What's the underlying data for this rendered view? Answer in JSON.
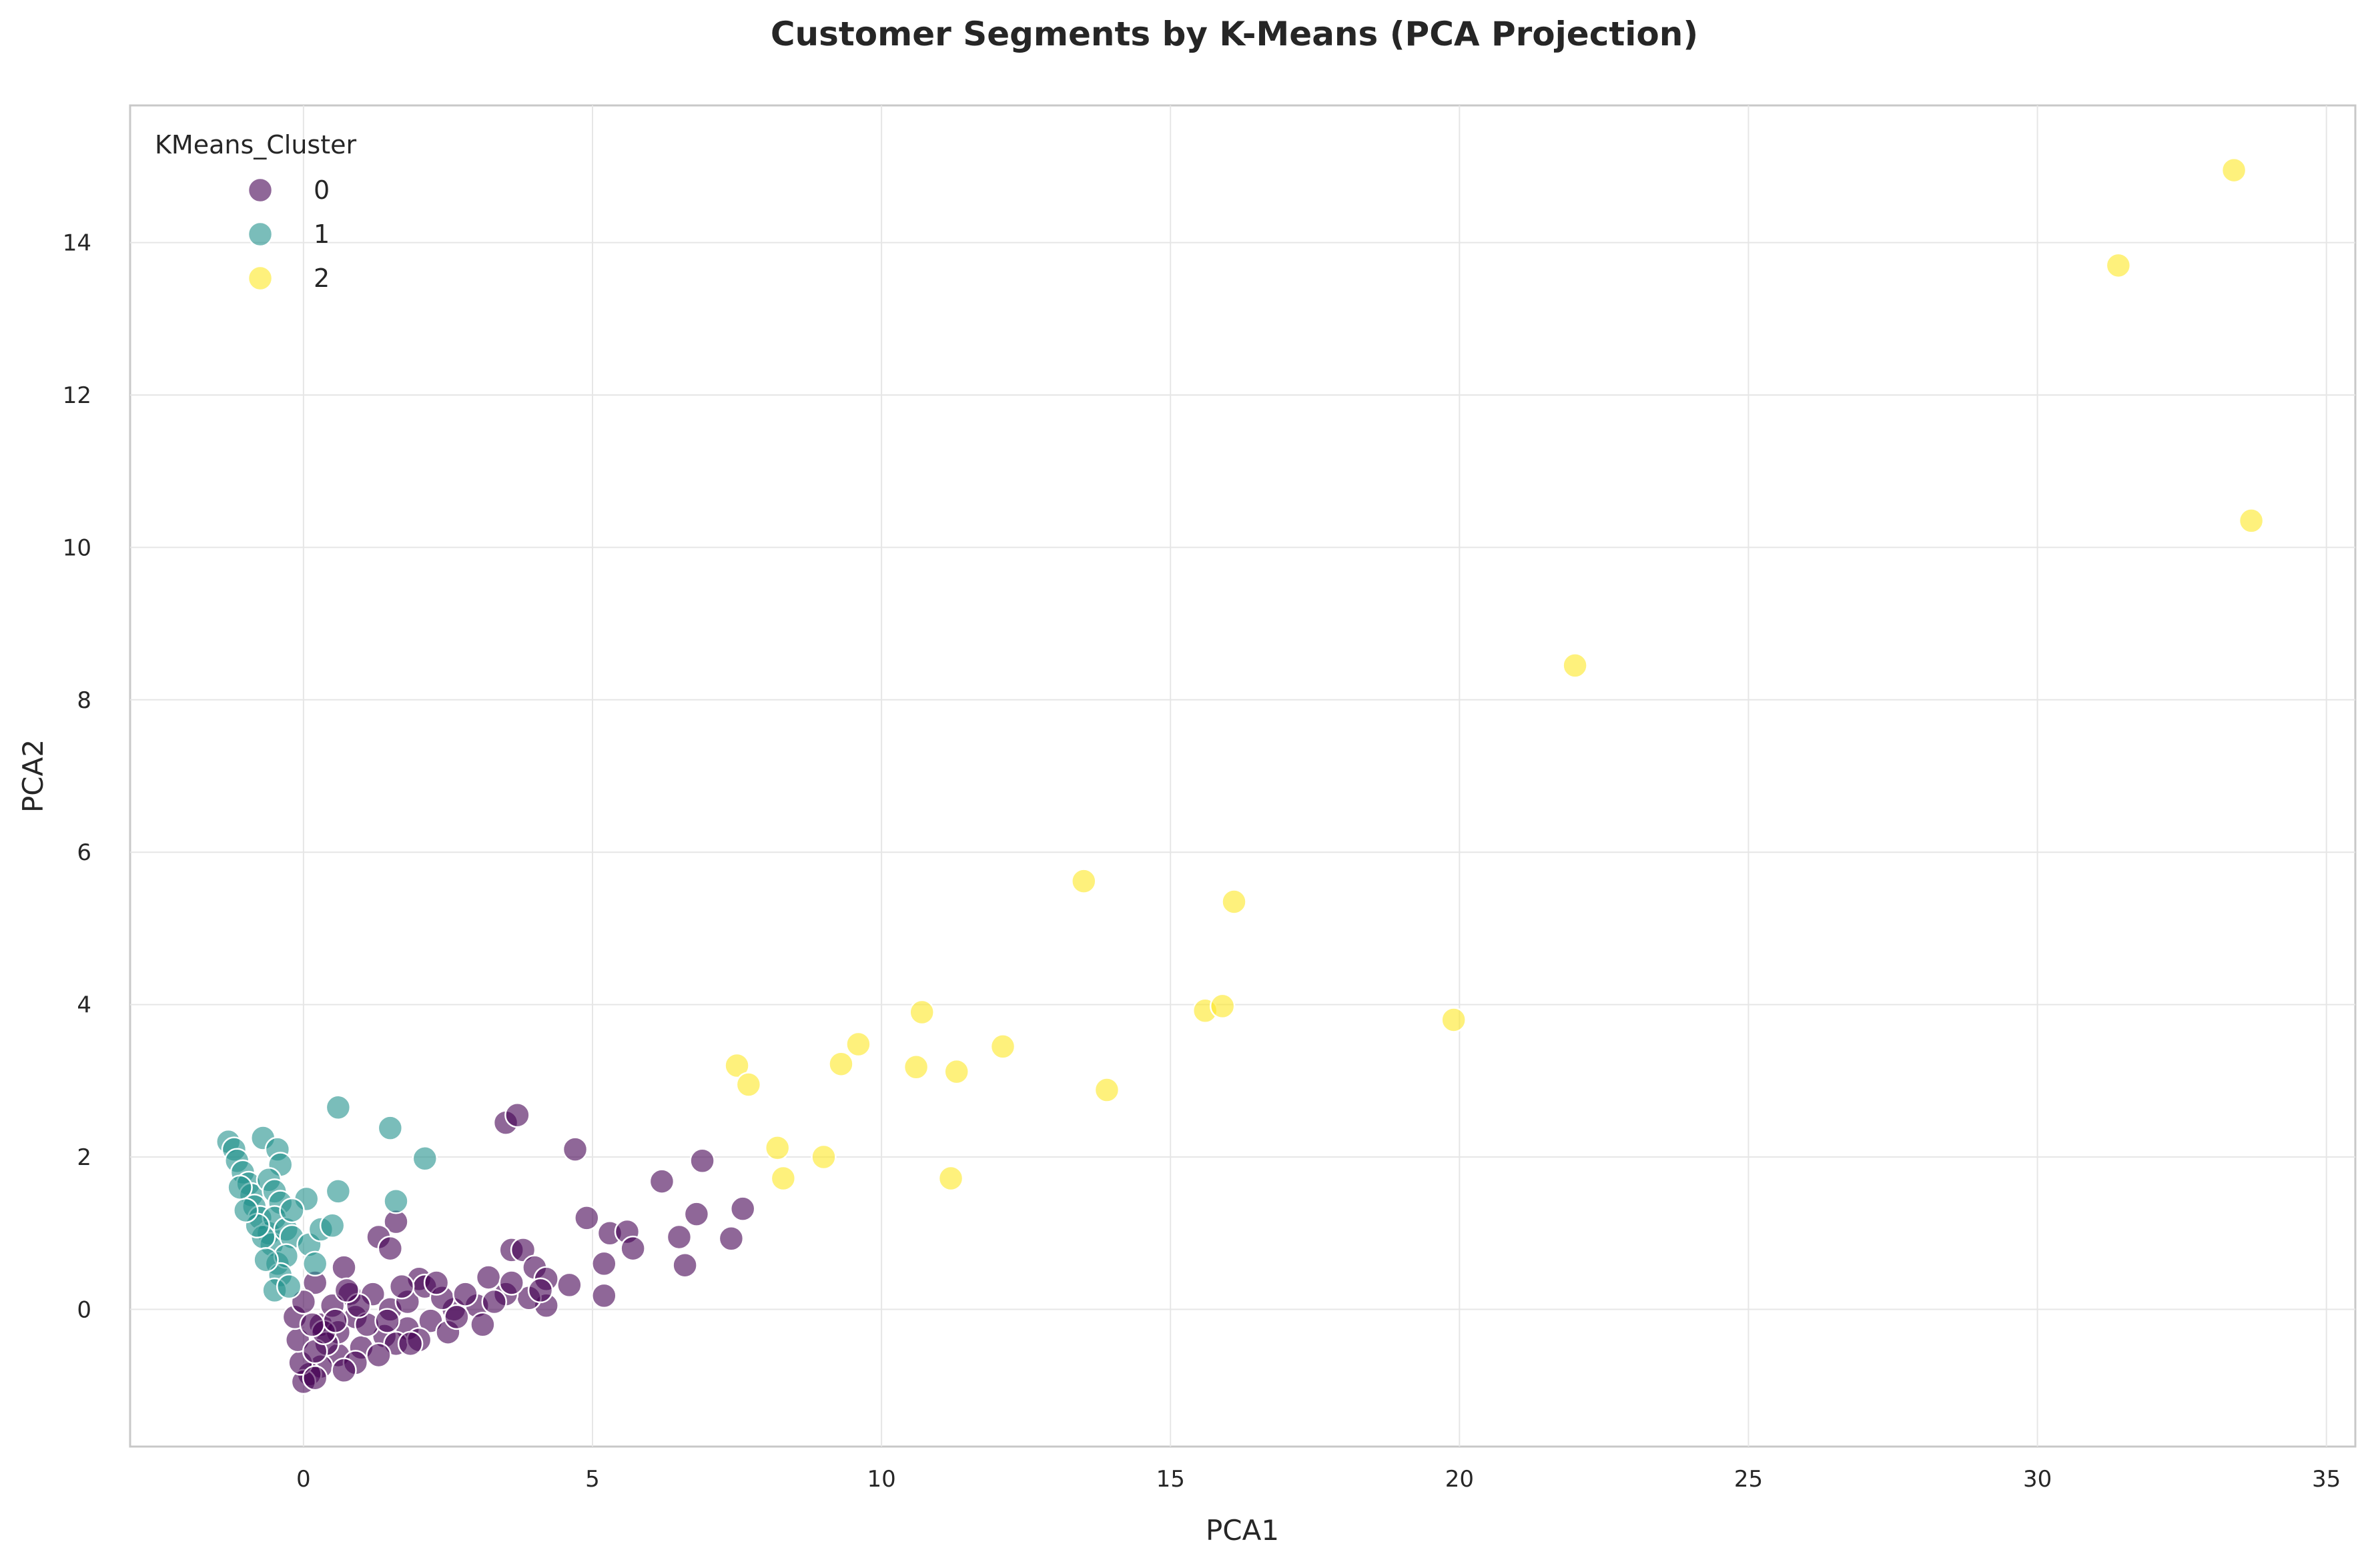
{
  "chart_data": {
    "type": "scatter",
    "title": "Customer Segments by K-Means (PCA Projection)",
    "xlabel": "PCA1",
    "ylabel": "PCA2",
    "xlim": [
      -3,
      35.5
    ],
    "ylim": [
      -1.8,
      15.8
    ],
    "xticks": [
      0,
      5,
      10,
      15,
      20,
      25,
      30,
      35
    ],
    "yticks": [
      0,
      2,
      4,
      6,
      8,
      10,
      12,
      14
    ],
    "grid": true,
    "legend": {
      "title": "KMeans_Cluster",
      "placement": "top-left"
    },
    "series": [
      {
        "name": "0",
        "color": "#440154",
        "points": [
          [
            3.5,
            2.45
          ],
          [
            3.7,
            2.55
          ],
          [
            4.7,
            2.1
          ],
          [
            6.9,
            1.95
          ],
          [
            6.2,
            1.68
          ],
          [
            7.6,
            1.32
          ],
          [
            6.8,
            1.25
          ],
          [
            4.9,
            1.2
          ],
          [
            5.3,
            1.0
          ],
          [
            5.6,
            1.02
          ],
          [
            5.2,
            0.6
          ],
          [
            5.7,
            0.8
          ],
          [
            6.5,
            0.95
          ],
          [
            7.4,
            0.93
          ],
          [
            6.6,
            0.58
          ],
          [
            5.2,
            0.18
          ],
          [
            4.6,
            0.32
          ],
          [
            4.2,
            0.05
          ],
          [
            1.6,
            1.15
          ],
          [
            1.3,
            0.95
          ],
          [
            1.5,
            0.8
          ],
          [
            0.7,
            0.55
          ],
          [
            0.2,
            0.35
          ],
          [
            0.8,
            0.2
          ],
          [
            2.0,
            0.4
          ],
          [
            3.2,
            0.42
          ],
          [
            3.6,
            0.78
          ],
          [
            3.8,
            0.78
          ],
          [
            4.0,
            0.55
          ],
          [
            4.2,
            0.4
          ],
          [
            3.9,
            0.15
          ],
          [
            3.5,
            0.2
          ],
          [
            3.0,
            0.05
          ],
          [
            2.6,
            0.0
          ],
          [
            2.2,
            -0.15
          ],
          [
            1.8,
            -0.25
          ],
          [
            1.4,
            -0.35
          ],
          [
            1.0,
            -0.5
          ],
          [
            0.6,
            -0.6
          ],
          [
            0.3,
            -0.75
          ],
          [
            0.1,
            -0.85
          ],
          [
            0.0,
            -0.95
          ],
          [
            -0.05,
            -0.7
          ],
          [
            -0.1,
            -0.4
          ],
          [
            -0.15,
            -0.1
          ],
          [
            0.0,
            0.1
          ],
          [
            0.3,
            -0.2
          ],
          [
            0.6,
            -0.3
          ],
          [
            0.9,
            -0.1
          ],
          [
            1.2,
            0.2
          ],
          [
            1.5,
            0.0
          ],
          [
            1.8,
            0.1
          ],
          [
            2.1,
            0.3
          ],
          [
            2.4,
            0.15
          ],
          [
            2.8,
            0.2
          ],
          [
            3.3,
            0.1
          ],
          [
            1.1,
            -0.2
          ],
          [
            0.5,
            0.05
          ],
          [
            0.9,
            -0.7
          ],
          [
            0.4,
            -0.45
          ],
          [
            0.2,
            -0.55
          ],
          [
            1.6,
            -0.45
          ],
          [
            2.0,
            -0.4
          ],
          [
            2.5,
            -0.3
          ],
          [
            1.3,
            -0.6
          ],
          [
            0.7,
            -0.8
          ],
          [
            0.2,
            -0.9
          ],
          [
            3.6,
            0.35
          ],
          [
            4.1,
            0.25
          ],
          [
            2.3,
            0.35
          ],
          [
            1.7,
            0.3
          ],
          [
            0.95,
            0.05
          ],
          [
            0.35,
            -0.3
          ],
          [
            0.55,
            -0.15
          ],
          [
            1.45,
            -0.15
          ],
          [
            2.65,
            -0.1
          ],
          [
            3.1,
            -0.2
          ],
          [
            1.85,
            -0.45
          ],
          [
            0.15,
            -0.2
          ],
          [
            0.75,
            0.25
          ]
        ]
      },
      {
        "name": "1",
        "color": "#21918c",
        "points": [
          [
            0.6,
            2.65
          ],
          [
            1.5,
            2.38
          ],
          [
            2.1,
            1.98
          ],
          [
            0.6,
            1.55
          ],
          [
            1.6,
            1.42
          ],
          [
            -1.3,
            2.2
          ],
          [
            -1.2,
            2.1
          ],
          [
            -1.15,
            1.95
          ],
          [
            -1.05,
            1.8
          ],
          [
            -0.7,
            2.25
          ],
          [
            -0.45,
            2.1
          ],
          [
            -0.4,
            1.9
          ],
          [
            -0.95,
            1.65
          ],
          [
            -0.9,
            1.5
          ],
          [
            -0.85,
            1.35
          ],
          [
            -0.75,
            1.2
          ],
          [
            -0.6,
            1.7
          ],
          [
            -0.5,
            1.55
          ],
          [
            -0.4,
            1.4
          ],
          [
            -0.6,
            1.0
          ],
          [
            -0.55,
            0.85
          ],
          [
            -0.45,
            0.6
          ],
          [
            -0.5,
            1.2
          ],
          [
            -0.3,
            1.05
          ],
          [
            -0.2,
            0.95
          ],
          [
            -0.3,
            0.7
          ],
          [
            -0.4,
            0.45
          ],
          [
            -0.5,
            0.25
          ],
          [
            0.1,
            0.85
          ],
          [
            0.3,
            1.05
          ],
          [
            0.5,
            1.1
          ],
          [
            0.05,
            1.45
          ],
          [
            -0.2,
            1.3
          ],
          [
            0.2,
            0.6
          ],
          [
            -0.7,
            0.95
          ],
          [
            -0.8,
            1.1
          ],
          [
            -1.0,
            1.3
          ],
          [
            -0.65,
            0.65
          ],
          [
            -1.1,
            1.6
          ],
          [
            -0.25,
            0.3
          ]
        ]
      },
      {
        "name": "2",
        "color": "#fde725",
        "points": [
          [
            33.4,
            14.95
          ],
          [
            31.4,
            13.7
          ],
          [
            33.7,
            10.35
          ],
          [
            22.0,
            8.45
          ],
          [
            13.5,
            5.62
          ],
          [
            16.1,
            5.35
          ],
          [
            19.9,
            3.8
          ],
          [
            15.6,
            3.92
          ],
          [
            15.9,
            3.98
          ],
          [
            10.7,
            3.9
          ],
          [
            9.6,
            3.48
          ],
          [
            12.1,
            3.45
          ],
          [
            9.3,
            3.22
          ],
          [
            10.6,
            3.18
          ],
          [
            11.3,
            3.12
          ],
          [
            7.5,
            3.2
          ],
          [
            7.7,
            2.95
          ],
          [
            13.9,
            2.88
          ],
          [
            8.2,
            2.12
          ],
          [
            8.3,
            1.72
          ],
          [
            9.0,
            2.0
          ],
          [
            11.2,
            1.72
          ]
        ]
      }
    ]
  }
}
